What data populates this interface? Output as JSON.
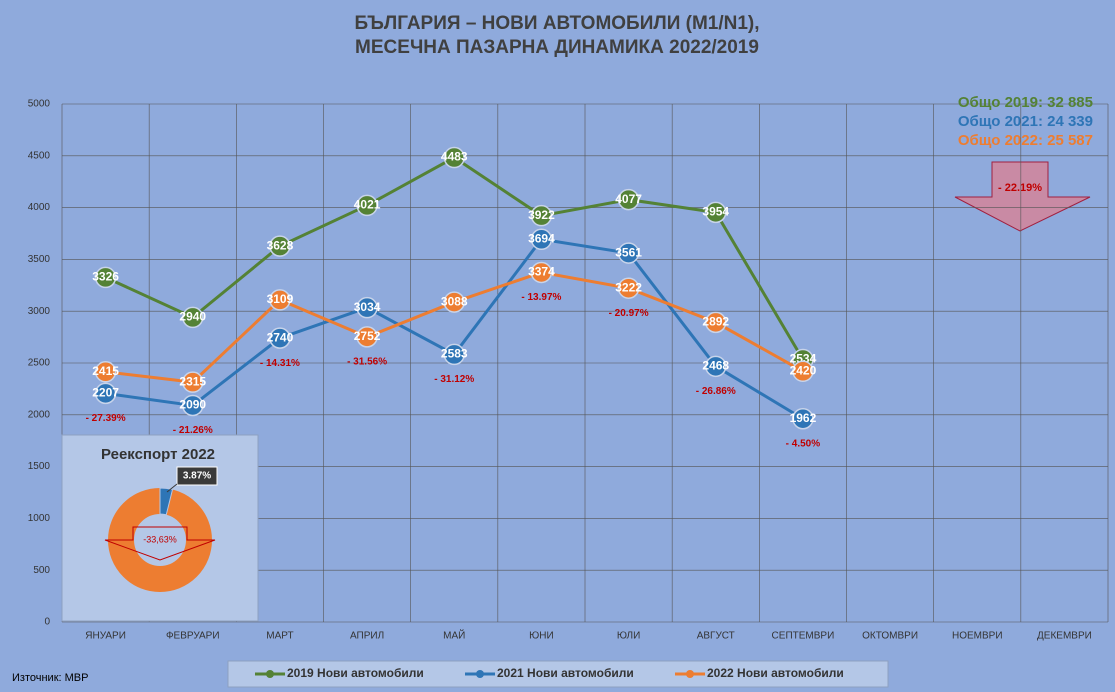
{
  "chart_data": {
    "type": "line",
    "title": [
      "БЪЛГАРИЯ – НОВИ АВТОМОБИЛИ (M1/N1),",
      "МЕСЕЧНА ПАЗАРНА ДИНАМИКА 2022/2019"
    ],
    "categories": [
      "ЯНУАРИ",
      "ФЕВРУАРИ",
      "МАРТ",
      "АПРИЛ",
      "МАЙ",
      "ЮНИ",
      "ЮЛИ",
      "АВГУСТ",
      "СЕПТЕМВРИ",
      "ОКТОМВРИ",
      "НОЕМВРИ",
      "ДЕКЕМВРИ"
    ],
    "series": [
      {
        "name": "2019 Нови автомобили",
        "color": "#548235",
        "values": [
          3326,
          2940,
          3628,
          4021,
          4483,
          3922,
          4077,
          3954,
          2534,
          null,
          null,
          null
        ]
      },
      {
        "name": "2021 Нови автомобили",
        "color": "#2e75b6",
        "values": [
          2207,
          2090,
          2740,
          3034,
          2583,
          3694,
          3561,
          2468,
          1962,
          null,
          null,
          null
        ]
      },
      {
        "name": "2022 Нови автомобили",
        "color": "#ed7d31",
        "values": [
          2415,
          2315,
          3109,
          2752,
          3088,
          3374,
          3222,
          2892,
          2420,
          null,
          null,
          null
        ]
      }
    ],
    "change_labels": [
      "- 27.39%",
      "- 21.26%",
      "- 14.31%",
      "- 31.56%",
      "- 31.12%",
      "- 13.97%",
      "- 20.97%",
      "- 26.86%",
      "- 4.50%"
    ],
    "totals": [
      "Общо 2019: 32 885",
      "Общо 2021: 24 339",
      "Общо 2022: 25 587"
    ],
    "arrow_label": "- 22.19%",
    "ylim": [
      0,
      5000
    ],
    "yticks": [
      0,
      500,
      1000,
      1500,
      2000,
      2500,
      3000,
      3500,
      4000,
      4500,
      5000
    ],
    "grid": true,
    "source": "Източник: МВР",
    "inset": {
      "type": "donut",
      "title": "Реекспорт 2022",
      "values": [
        3.87
      ],
      "value_labels": [
        "3.87%"
      ],
      "colors": [
        "#2e75b6",
        "#ed7d31"
      ],
      "arrow_label": "-33,63%"
    }
  }
}
